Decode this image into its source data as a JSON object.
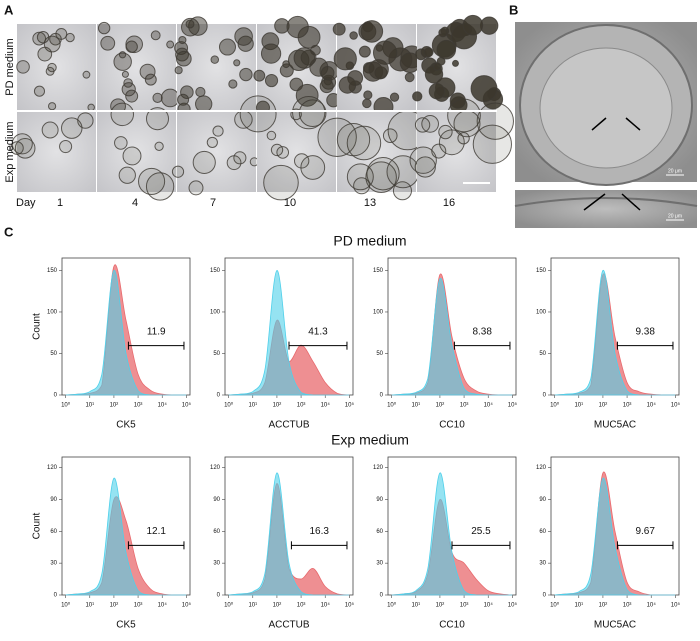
{
  "panel_a": {
    "label": "A",
    "rows": [
      "PD medium",
      "Exp medium"
    ],
    "day_label": "Day",
    "days": [
      "1",
      "4",
      "7",
      "10",
      "13",
      "16"
    ]
  },
  "panel_b": {
    "label": "B",
    "scale_labels": [
      "20 μm",
      "20 μm"
    ]
  },
  "panel_c": {
    "label": "C",
    "y_label": "Count",
    "control_color": "#4fd0ea",
    "sample_color": "#e86a6e",
    "x": [
      0,
      0.5,
      1,
      1.5,
      2,
      2.5,
      3,
      3.5,
      4,
      4.5,
      5
    ],
    "xlim": [
      -0.15,
      5.15
    ],
    "xticks": [
      {
        "value": 0,
        "label": "10⁰"
      },
      {
        "value": 1,
        "label": "10¹"
      },
      {
        "value": 2,
        "label": "10²"
      },
      {
        "value": 3,
        "label": "10³"
      },
      {
        "value": 4,
        "label": "10⁴"
      },
      {
        "value": 5,
        "label": "10⁵"
      }
    ],
    "groups": [
      {
        "title": "PD medium",
        "ylim": [
          0,
          165
        ],
        "yticks": [
          0,
          50,
          100,
          150
        ],
        "panels": [
          {
            "marker": "CK5",
            "gate": [
              2.6,
              4.9
            ],
            "gate_label": 11.9,
            "control": [
              0,
              1,
              4,
              25,
              150,
              50,
              5,
              0,
              0,
              0,
              0
            ],
            "sample": [
              0,
              1,
              2,
              12,
              155,
              90,
              25,
              6,
              1,
              0,
              0
            ]
          },
          {
            "marker": "ACCTUB",
            "gate": [
              2.5,
              4.9
            ],
            "gate_label": 41.3,
            "control": [
              0,
              1,
              4,
              30,
              150,
              40,
              3,
              0,
              0,
              0,
              0
            ],
            "sample": [
              0,
              1,
              2,
              15,
              90,
              40,
              60,
              40,
              15,
              2,
              0
            ]
          },
          {
            "marker": "CC10",
            "gate": [
              2.6,
              4.9
            ],
            "gate_label": 8.38,
            "control": [
              0,
              1,
              3,
              20,
              140,
              60,
              8,
              1,
              0,
              0,
              0
            ],
            "sample": [
              0,
              1,
              2,
              15,
              145,
              70,
              20,
              5,
              1,
              0,
              0
            ]
          },
          {
            "marker": "MUC5AC",
            "gate": [
              2.6,
              4.9
            ],
            "gate_label": 9.38,
            "control": [
              0,
              1,
              3,
              20,
              150,
              50,
              5,
              0,
              0,
              0,
              0
            ],
            "sample": [
              0,
              1,
              2,
              12,
              145,
              70,
              15,
              4,
              1,
              0,
              0
            ]
          }
        ]
      },
      {
        "title": "Exp medium",
        "ylim": [
          0,
          130
        ],
        "yticks": [
          0,
          30,
          60,
          90,
          120
        ],
        "panels": [
          {
            "marker": "CK5",
            "gate": [
              2.6,
              4.9
            ],
            "gate_label": 12.1,
            "control": [
              0,
              1,
              3,
              20,
              110,
              40,
              4,
              0,
              0,
              0,
              0
            ],
            "sample": [
              0,
              1,
              2,
              12,
              90,
              70,
              25,
              6,
              1,
              0,
              0
            ]
          },
          {
            "marker": "ACCTUB",
            "gate": [
              2.6,
              4.9
            ],
            "gate_label": 16.3,
            "control": [
              0,
              1,
              3,
              20,
              115,
              30,
              3,
              0,
              0,
              0,
              0
            ],
            "sample": [
              0,
              1,
              2,
              15,
              105,
              25,
              15,
              25,
              8,
              1,
              0
            ]
          },
          {
            "marker": "CC10",
            "gate": [
              2.5,
              4.9
            ],
            "gate_label": 25.5,
            "control": [
              0,
              1,
              4,
              25,
              115,
              40,
              4,
              0,
              0,
              0,
              0
            ],
            "sample": [
              0,
              1,
              3,
              20,
              90,
              40,
              30,
              15,
              4,
              1,
              0
            ]
          },
          {
            "marker": "MUC5AC",
            "gate": [
              2.6,
              4.9
            ],
            "gate_label": 9.67,
            "control": [
              0,
              1,
              3,
              20,
              110,
              45,
              5,
              0,
              0,
              0,
              0
            ],
            "sample": [
              0,
              1,
              2,
              12,
              115,
              60,
              12,
              3,
              0,
              0,
              0
            ]
          }
        ]
      }
    ]
  }
}
